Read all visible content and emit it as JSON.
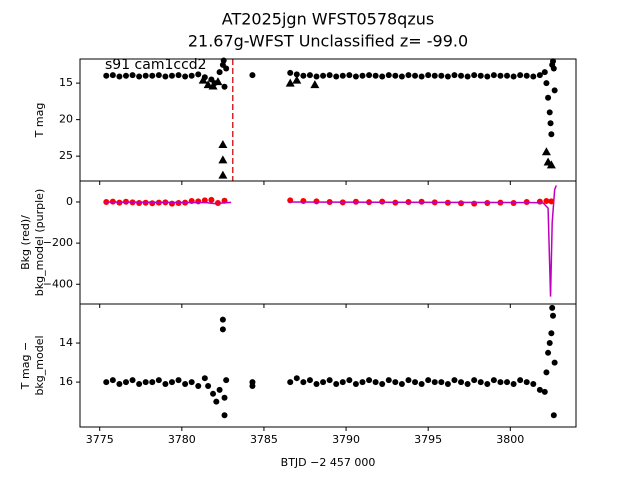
{
  "chart_data": [
    {
      "type": "scatter",
      "title": "AT2025jgn  WFST0578qzus",
      "subtitle": "21.67g-WFST Unclassified z= -99.0",
      "annotation": "s91 cam1ccd2",
      "ylabel": [
        "T mag"
      ],
      "xlim": [
        3773.8,
        3804.0
      ],
      "xticks": [
        3775,
        3780,
        3785,
        3790,
        3795,
        3800
      ],
      "ylim": [
        28.4,
        11.7
      ],
      "yticks": [
        15,
        20,
        25
      ],
      "vlines": [
        {
          "x": 3783.1,
          "color": "#d62728",
          "style": "dashed"
        }
      ],
      "series": [
        {
          "kind": "scatter",
          "marker": "circle",
          "color": "#000000",
          "x": [
            3775.4,
            3775.8,
            3776.2,
            3776.6,
            3777.0,
            3777.4,
            3777.8,
            3778.2,
            3778.6,
            3779.0,
            3779.4,
            3779.8,
            3780.2,
            3780.6,
            3781.0,
            3781.4,
            3781.8,
            3782.0,
            3782.3,
            3782.5,
            3782.55,
            3782.6,
            3782.7,
            3784.3,
            3786.6,
            3787.0,
            3787.4,
            3787.8,
            3788.2,
            3788.6,
            3789.0,
            3789.4,
            3789.8,
            3790.2,
            3790.6,
            3791.0,
            3791.4,
            3791.8,
            3792.2,
            3792.6,
            3793.0,
            3793.4,
            3793.8,
            3794.2,
            3794.6,
            3795.0,
            3795.4,
            3795.8,
            3796.2,
            3796.6,
            3797.0,
            3797.4,
            3797.8,
            3798.2,
            3798.6,
            3799.0,
            3799.4,
            3799.8,
            3800.2,
            3800.6,
            3801.0,
            3801.4,
            3801.8,
            3802.1,
            3802.2,
            3802.3,
            3802.4,
            3802.45,
            3802.5,
            3802.55,
            3802.6,
            3802.65,
            3802.7
          ],
          "values": [
            14.0,
            13.9,
            14.1,
            14.0,
            13.9,
            14.1,
            14.0,
            14.0,
            13.9,
            14.1,
            14.0,
            13.9,
            14.1,
            14.0,
            13.8,
            14.2,
            14.5,
            15.0,
            13.5,
            12.5,
            11.9,
            15.5,
            13.0,
            13.9,
            13.6,
            13.8,
            14.0,
            13.9,
            14.1,
            14.0,
            13.9,
            14.1,
            14.0,
            13.9,
            14.1,
            14.0,
            13.9,
            14.0,
            14.1,
            13.9,
            14.0,
            14.1,
            13.9,
            14.0,
            14.1,
            13.9,
            14.0,
            14.0,
            14.1,
            13.9,
            14.0,
            14.1,
            13.9,
            14.0,
            14.1,
            13.9,
            14.0,
            14.0,
            14.1,
            13.9,
            14.0,
            14.1,
            13.9,
            13.5,
            15.0,
            17.0,
            19.0,
            20.5,
            22.0,
            12.5,
            12.0,
            13.0,
            16.0
          ]
        },
        {
          "kind": "scatter",
          "marker": "triangle",
          "color": "#000000",
          "x": [
            3781.3,
            3781.6,
            3781.9,
            3782.2,
            3782.5,
            3782.5,
            3782.5,
            3786.6,
            3787.0,
            3788.1,
            3802.2,
            3802.3,
            3802.5
          ],
          "values": [
            14.6,
            15.2,
            15.4,
            14.8,
            23.4,
            25.5,
            27.6,
            15.0,
            14.6,
            15.2,
            24.4,
            25.8,
            26.2
          ]
        }
      ]
    },
    {
      "type": "scatter",
      "ylabel": [
        "Bkg (red)/",
        "bkg_model (purple)"
      ],
      "xlim": [
        3773.8,
        3804.0
      ],
      "xticks": [
        3775,
        3780,
        3785,
        3790,
        3795,
        3800
      ],
      "ylim": [
        -496,
        102
      ],
      "yticks": [
        0,
        {
          "value": -200,
          "label": "−200"
        },
        {
          "value": -400,
          "label": "−400"
        }
      ],
      "series": [
        {
          "kind": "scatter",
          "marker": "circle",
          "color": "#ff0000",
          "x": [
            3775.4,
            3775.8,
            3776.2,
            3776.6,
            3777.0,
            3777.4,
            3777.8,
            3778.2,
            3778.6,
            3779.0,
            3779.4,
            3779.8,
            3780.2,
            3780.6,
            3781.0,
            3781.4,
            3781.8,
            3782.2,
            3782.6,
            3786.6,
            3787.4,
            3788.2,
            3789.0,
            3789.8,
            3790.6,
            3791.4,
            3792.2,
            3793.0,
            3793.8,
            3794.6,
            3795.4,
            3796.2,
            3797.0,
            3797.8,
            3798.6,
            3799.4,
            3800.2,
            3801.0,
            3801.8,
            3802.2,
            3802.5
          ],
          "values": [
            0,
            2,
            -3,
            1,
            -2,
            -5,
            -4,
            -6,
            -3,
            -2,
            -8,
            -5,
            -3,
            5,
            3,
            8,
            10,
            -5,
            6,
            8,
            5,
            3,
            0,
            -2,
            1,
            -1,
            2,
            -3,
            0,
            1,
            -2,
            -4,
            -6,
            -8,
            -5,
            -3,
            -5,
            0,
            2,
            5,
            3
          ]
        },
        {
          "kind": "line",
          "color": "#bf00bf",
          "x": [
            3775.3,
            3781.5,
            3782.0,
            3783.0,
            3786.5,
            3786.5,
            3801.5,
            3802.0,
            3802.3,
            3802.45,
            3802.55,
            3802.7,
            3802.8
          ],
          "values": [
            0,
            -3,
            -8,
            -2,
            null,
            0,
            -3,
            -5,
            -30,
            -460,
            -100,
            60,
            80
          ]
        }
      ]
    },
    {
      "type": "scatter",
      "ylabel": [
        "T mag −",
        "bkg_model"
      ],
      "xlabel": "BTJD −2 457 000",
      "xlim": [
        3773.8,
        3804.0
      ],
      "xticks": [
        3775,
        3780,
        3785,
        3790,
        3795,
        3800
      ],
      "ylim": [
        18.3,
        12.0
      ],
      "yticks": [
        14,
        16
      ],
      "series": [
        {
          "kind": "scatter",
          "marker": "circle",
          "color": "#000000",
          "x": [
            3775.4,
            3775.8,
            3776.2,
            3776.6,
            3777.0,
            3777.4,
            3777.8,
            3778.2,
            3778.6,
            3779.0,
            3779.4,
            3779.8,
            3780.2,
            3780.6,
            3781.0,
            3781.4,
            3781.6,
            3781.9,
            3782.1,
            3782.3,
            3782.5,
            3782.5,
            3782.6,
            3782.6,
            3782.7,
            3784.3,
            3784.3,
            3786.6,
            3787.0,
            3787.4,
            3787.8,
            3788.2,
            3788.6,
            3789.0,
            3789.4,
            3789.8,
            3790.2,
            3790.6,
            3791.0,
            3791.4,
            3791.8,
            3792.2,
            3792.6,
            3793.0,
            3793.4,
            3793.8,
            3794.2,
            3794.6,
            3795.0,
            3795.4,
            3795.8,
            3796.2,
            3796.6,
            3797.0,
            3797.4,
            3797.8,
            3798.2,
            3798.6,
            3799.0,
            3799.4,
            3799.8,
            3800.2,
            3800.6,
            3801.0,
            3801.4,
            3801.8,
            3802.1,
            3802.2,
            3802.3,
            3802.4,
            3802.5,
            3802.55,
            3802.6,
            3802.65,
            3802.7
          ],
          "values": [
            16.0,
            15.9,
            16.1,
            16.0,
            15.9,
            16.1,
            16.0,
            16.0,
            15.9,
            16.1,
            16.0,
            15.9,
            16.1,
            16.0,
            16.2,
            15.8,
            16.2,
            16.6,
            17.0,
            16.4,
            12.8,
            13.3,
            16.8,
            17.7,
            15.9,
            16.0,
            16.2,
            16.0,
            15.8,
            16.0,
            15.9,
            16.1,
            16.0,
            15.9,
            16.1,
            16.0,
            15.9,
            16.1,
            16.0,
            15.9,
            16.0,
            16.1,
            15.9,
            16.0,
            16.1,
            15.9,
            16.0,
            16.1,
            15.9,
            16.0,
            16.0,
            16.1,
            15.9,
            16.0,
            16.1,
            15.9,
            16.0,
            16.1,
            15.9,
            16.0,
            16.0,
            16.1,
            15.9,
            16.0,
            16.1,
            16.4,
            16.5,
            15.5,
            14.5,
            14.0,
            13.5,
            12.2,
            12.6,
            17.7,
            15.0
          ]
        }
      ]
    }
  ]
}
